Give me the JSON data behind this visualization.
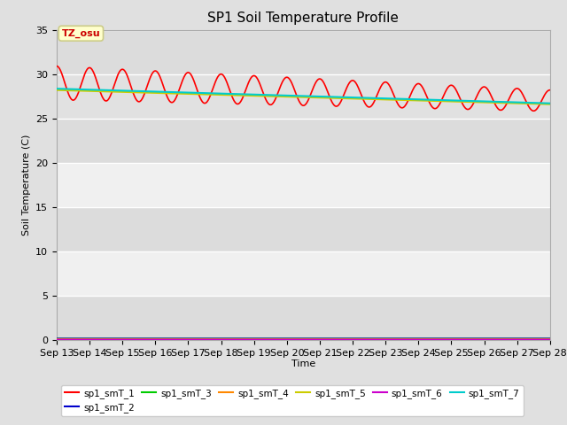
{
  "title": "SP1 Soil Temperature Profile",
  "xlabel": "Time",
  "ylabel": "Soil Temperature (C)",
  "ylim": [
    0,
    35
  ],
  "yticks": [
    0,
    5,
    10,
    15,
    20,
    25,
    30,
    35
  ],
  "x_labels": [
    "Sep 13",
    "Sep 14",
    "Sep 15",
    "Sep 16",
    "Sep 17",
    "Sep 18",
    "Sep 19",
    "Sep 20",
    "Sep 21",
    "Sep 22",
    "Sep 23",
    "Sep 24",
    "Sep 25",
    "Sep 26",
    "Sep 27",
    "Sep 28"
  ],
  "annotation_text": "TZ_osu",
  "annotation_bg": "#ffffcc",
  "annotation_border": "#cccc88",
  "series": [
    {
      "name": "sp1_smT_1",
      "color": "#ff0000",
      "lw": 1.2
    },
    {
      "name": "sp1_smT_2",
      "color": "#0000cc",
      "lw": 1.2
    },
    {
      "name": "sp1_smT_3",
      "color": "#00cc00",
      "lw": 1.2
    },
    {
      "name": "sp1_smT_4",
      "color": "#ff8800",
      "lw": 1.2
    },
    {
      "name": "sp1_smT_5",
      "color": "#cccc00",
      "lw": 1.5
    },
    {
      "name": "sp1_smT_6",
      "color": "#cc00cc",
      "lw": 1.2
    },
    {
      "name": "sp1_smT_7",
      "color": "#00cccc",
      "lw": 1.5
    }
  ],
  "fig_bg": "#e0e0e0",
  "plot_bg_light": "#f0f0f0",
  "plot_bg_dark": "#dcdcdc",
  "band_color": "#e0e0e0"
}
